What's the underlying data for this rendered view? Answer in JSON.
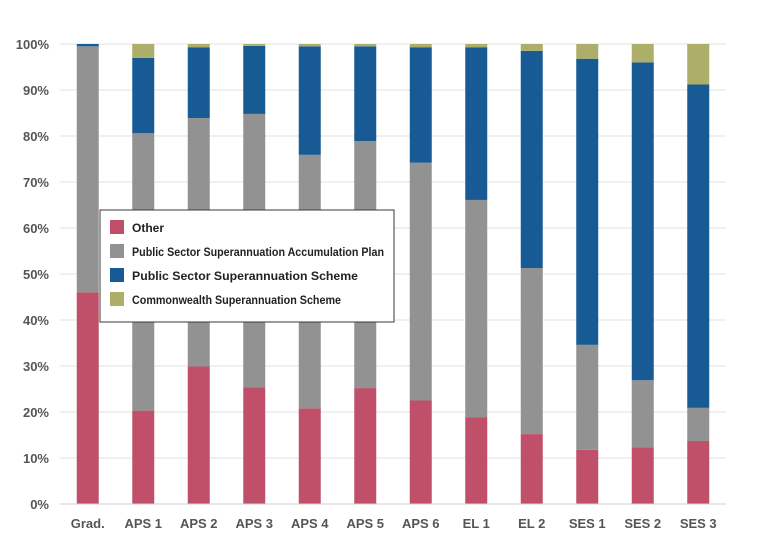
{
  "chart_data": {
    "type": "bar",
    "stacked": true,
    "percent": true,
    "categories": [
      "Grad.",
      "APS 1",
      "APS 2",
      "APS 3",
      "APS 4",
      "APS 5",
      "APS 6",
      "EL 1",
      "EL 2",
      "SES 1",
      "SES 2",
      "SES 3"
    ],
    "series": [
      {
        "name": "Other",
        "color": "#c0506a",
        "values": [
          46.0,
          20.3,
          29.9,
          25.4,
          20.8,
          25.2,
          22.5,
          18.8,
          15.2,
          11.8,
          12.3,
          13.7
        ]
      },
      {
        "name": "Public Sector Superannuation Accumulation Plan",
        "color": "#929292",
        "values": [
          53.5,
          60.3,
          54.0,
          59.4,
          55.1,
          53.7,
          51.7,
          47.3,
          36.1,
          22.8,
          14.6,
          7.2
        ]
      },
      {
        "name": "Public Sector Superannuation Scheme",
        "color": "#185a93",
        "values": [
          0.5,
          16.4,
          15.4,
          14.8,
          23.6,
          20.6,
          25.1,
          33.2,
          47.2,
          62.2,
          69.1,
          70.3
        ]
      },
      {
        "name": "Commonwealth Superannuation Scheme",
        "color": "#aeae6b",
        "values": [
          0.0,
          3.0,
          0.7,
          0.4,
          0.5,
          0.5,
          0.7,
          0.7,
          1.5,
          3.2,
          4.0,
          8.8
        ]
      }
    ],
    "yticks": [
      "0%",
      "10%",
      "20%",
      "30%",
      "40%",
      "50%",
      "60%",
      "70%",
      "80%",
      "90%",
      "100%"
    ],
    "ylim": [
      0,
      100
    ],
    "title": "",
    "xlabel": "",
    "ylabel": "",
    "grid": true,
    "legend_position": "inside-left"
  }
}
